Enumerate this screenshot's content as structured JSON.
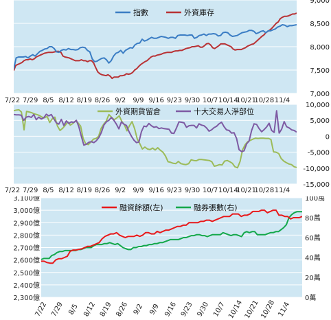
{
  "colors": {
    "panel_bg": "#cfe7f3",
    "grid": "#ffffff",
    "axis_text": "#222222",
    "index": "#3b7dc4",
    "foreign_inventory": "#b83235",
    "foreign_futures": "#9cbb59",
    "top10_net": "#7e5aa3",
    "margin_balance": "#e8191b",
    "short_balance": "#14a84b"
  },
  "chart_data": [
    {
      "type": "line",
      "series": [
        {
          "name": "指數",
          "axis": "left",
          "values": [
            7520,
            7760,
            7780,
            7780,
            7780,
            7790,
            7760,
            7800,
            7830,
            7800,
            7850,
            7900,
            7920,
            7950,
            7960,
            8000,
            8000,
            7960,
            7890,
            7880,
            7920,
            7940,
            7930,
            7960,
            7940,
            7940,
            7930,
            7940,
            7980,
            7990,
            7980,
            7920,
            7890,
            7740,
            7680,
            7690,
            7720,
            7750,
            7760,
            7720,
            7650,
            7700,
            7800,
            7860,
            7880,
            7920,
            7860,
            7920,
            7950,
            7980,
            7970,
            8040,
            8070,
            8080,
            8160,
            8120,
            8140,
            8170,
            8200,
            8180,
            8180,
            8200,
            8220,
            8210,
            8200,
            8180,
            8200,
            8200,
            8180,
            8240,
            8250,
            8250,
            8250,
            8240,
            8250,
            8250,
            8180,
            8200,
            8240,
            8250,
            8270,
            8240,
            8270,
            8270,
            8280,
            8270,
            8230,
            8240,
            8300,
            8310,
            8300,
            8250,
            8220,
            8230,
            8240,
            8270,
            8300,
            8310,
            8320,
            8350,
            8350,
            8330,
            8280,
            8300,
            8330,
            8340,
            8300,
            8340,
            8340,
            8360,
            8380,
            8420,
            8440,
            8470,
            8460,
            8430,
            8450,
            8450,
            8460,
            8470
          ]
        },
        {
          "name": "外資庫存",
          "axis": "right",
          "values": [
            7490,
            7600,
            7620,
            7640,
            7660,
            7700,
            7720,
            7720,
            7740,
            7720,
            7740,
            7780,
            7800,
            7820,
            7840,
            7860,
            7870,
            7880,
            7880,
            7880,
            7890,
            7900,
            7900,
            7880,
            7800,
            7780,
            7770,
            7760,
            7740,
            7720,
            7700,
            7700,
            7700,
            7720,
            7700,
            7700,
            7680,
            7700,
            7700,
            7650,
            7550,
            7460,
            7420,
            7400,
            7390,
            7380,
            7400,
            7370,
            7320,
            7350,
            7350,
            7350,
            7380,
            7380,
            7390,
            7420,
            7410,
            7420,
            7450,
            7500,
            7530,
            7580,
            7620,
            7650,
            7680,
            7700,
            7740,
            7780,
            7800,
            7800,
            7820,
            7830,
            7840,
            7860,
            7870,
            7880,
            7880,
            7880,
            7900,
            7910,
            7910,
            7920,
            7920,
            7940,
            7960,
            7970,
            7980,
            8000,
            8000,
            8010,
            8020,
            7990,
            7990,
            8020,
            8060,
            8070,
            8040,
            7980,
            7960,
            7990,
            8020,
            8060,
            8060,
            8060,
            8040,
            8020,
            8000,
            7950,
            7930,
            7940,
            7940,
            7940,
            7960,
            7980,
            8010,
            8030,
            8050,
            8060,
            8100,
            8140,
            8180,
            8220,
            8250,
            8300,
            8330,
            8360,
            8400,
            8450,
            8500,
            8530,
            8600,
            8630,
            8650,
            8650,
            8660,
            8680,
            8700,
            8700,
            8720
          ]
        }
      ],
      "ylim_left": [
        7000,
        9000
      ],
      "yticks": [
        "7,000",
        "7,500",
        "8,000",
        "8,500",
        "9,000"
      ],
      "xticks": [
        "7/22",
        "7/29",
        "8/5",
        "8/12",
        "8/19",
        "8/26",
        "9/2",
        "9/9",
        "9/16",
        "9/23",
        "9/30",
        "10/7",
        "10/14",
        "10/21",
        "10/28",
        "11/4"
      ],
      "legend": "top",
      "grid": true
    },
    {
      "type": "line",
      "series": [
        {
          "name": "外資期貨留倉",
          "values": [
            8000,
            8200,
            8300,
            7600,
            2000,
            7800,
            7600,
            7400,
            7000,
            6800,
            6500,
            6000,
            5800,
            6200,
            4300,
            5500,
            6000,
            3200,
            1800,
            2500,
            3400,
            4500,
            3500,
            4000,
            4800,
            4200,
            3200,
            -700,
            -2400,
            -2600,
            -1800,
            -900,
            -700,
            0,
            2500,
            3800,
            4800,
            6800,
            6000,
            5200,
            5700,
            6400,
            4700,
            3600,
            1700,
            3300,
            4600,
            2400,
            -800,
            -2300,
            -4000,
            -3400,
            -4000,
            -4200,
            -3700,
            -4300,
            -3600,
            -4400,
            -5000,
            -6200,
            -8000,
            -8200,
            -8500,
            -8600,
            -7900,
            -8600,
            -8800,
            -8900,
            -8600,
            -7400,
            -7600,
            -7700,
            -7300,
            -7300,
            -7400,
            -7500,
            -7600,
            -8000,
            -9400,
            -9200,
            -8900,
            -9000,
            -7800,
            -7600,
            -8000,
            -8500,
            -9600,
            -9900,
            -7900,
            -4200,
            -2600,
            -1700,
            -1300,
            -900,
            -600,
            -700,
            -600,
            -600,
            -700,
            -700,
            -1000,
            -4900,
            -5000,
            -5400,
            -7000,
            -7800,
            -8300,
            -8700,
            -8900,
            -9600,
            -9800
          ]
        },
        {
          "name": "十大交易人淨部位",
          "values": [
            6800,
            6700,
            6700,
            6600,
            5000,
            6000,
            6200,
            5900,
            6800,
            5200,
            6000,
            5400,
            5800,
            6900,
            6400,
            6800,
            5500,
            4200,
            3800,
            5300,
            3400,
            4800,
            4000,
            4500,
            4300,
            5000,
            3000,
            0,
            -2800,
            -2500,
            -1900,
            -1700,
            -2000,
            -1400,
            -400,
            1200,
            3500,
            4500,
            5000,
            5900,
            5000,
            3800,
            2300,
            4500,
            3800,
            3400,
            1500,
            0,
            -1200,
            -2000,
            -1800,
            1400,
            3200,
            3000,
            4000,
            3300,
            2800,
            3000,
            2400,
            2600,
            2400,
            2300,
            2200,
            1000,
            900,
            2600,
            4500,
            4400,
            4200,
            2800,
            3300,
            3400,
            3400,
            2600,
            3900,
            3500,
            3300,
            2600,
            1600,
            2000,
            2700,
            3100,
            3900,
            4400,
            3000,
            2000,
            1800,
            1000,
            1100,
            -700,
            -4200,
            -4800,
            -4600,
            -2400,
            -1500,
            1800,
            3900,
            3700,
            2400,
            1400,
            2100,
            2900,
            4100,
            1800,
            1200,
            8000,
            1000,
            2200,
            4600,
            3000,
            2600,
            2000,
            1800,
            1300
          ]
        }
      ],
      "ylim": [
        -15000,
        10000
      ],
      "yticks": [
        "-15,000",
        "-10,000",
        "-5,000",
        "0",
        "5,000",
        "10,000"
      ],
      "xticks": [
        "7/22",
        "7/29",
        "8/5",
        "8/12",
        "8/19",
        "8/26",
        "9/2",
        "9/9",
        "9/16",
        "9/23",
        "9/30",
        "10/7",
        "10/14",
        "10/21",
        "10/28",
        "11/4"
      ],
      "legend": "top",
      "grid": true
    },
    {
      "type": "line",
      "series": [
        {
          "name": "融資餘額(左)",
          "axis": "left",
          "values": [
            2590,
            2590,
            2580,
            2575,
            2575,
            2600,
            2610,
            2610,
            2620,
            2630,
            2670,
            2680,
            2680,
            2685,
            2690,
            2700,
            2710,
            2710,
            2720,
            2730,
            2740,
            2770,
            2790,
            2800,
            2810,
            2810,
            2820,
            2800,
            2790,
            2780,
            2790,
            2790,
            2790,
            2800,
            2790,
            2800,
            2820,
            2820,
            2810,
            2810,
            2830,
            2820,
            2830,
            2840,
            2840,
            2850,
            2860,
            2870,
            2870,
            2880,
            2880,
            2900,
            2900,
            2900,
            2900,
            2910,
            2910,
            2920,
            2920,
            2910,
            2920,
            2930,
            2940,
            2950,
            2950,
            2950,
            2970,
            2970,
            2970,
            2950,
            2960,
            2960,
            2970,
            2990,
            2990,
            2990,
            3000,
            3000,
            2980,
            2990,
            3000,
            3000,
            2960,
            2960,
            2950,
            2950,
            2930,
            2940,
            2940,
            2940,
            2950
          ]
        },
        {
          "name": "融券張數(右)",
          "axis": "right",
          "values": [
            38,
            39,
            39,
            39,
            42,
            43,
            45,
            46,
            46,
            47,
            47,
            47,
            47,
            47,
            48,
            48,
            49,
            50,
            50,
            50,
            52,
            53,
            53,
            53,
            54,
            54,
            55,
            54,
            53,
            54,
            52,
            50,
            49,
            48,
            48,
            50,
            50,
            51,
            51,
            52,
            52,
            53,
            53,
            54,
            54,
            55,
            55,
            56,
            57,
            58,
            58,
            58,
            58,
            59,
            60,
            60,
            61,
            62,
            62,
            63,
            63,
            62,
            62,
            61,
            62,
            63,
            63,
            63,
            63,
            65,
            64,
            63,
            62,
            63,
            63,
            62,
            61,
            65,
            66,
            65,
            66,
            66,
            63,
            63,
            63,
            63,
            64,
            65,
            65,
            66,
            66,
            68,
            70,
            73,
            80,
            83,
            85,
            86,
            86,
            86
          ]
        }
      ],
      "ylim_left": [
        2300,
        3100
      ],
      "ylim_right": [
        0,
        100
      ],
      "yticks_left": [
        "2,300億",
        "2,400億",
        "2,500億",
        "2,600億",
        "2,700億",
        "2,800億",
        "2,900億",
        "3,000億",
        "3,100億"
      ],
      "yticks_right": [
        "0萬",
        "20萬",
        "40萬",
        "60萬",
        "80萬",
        "100萬"
      ],
      "xticks": [
        "7/22",
        "7/29",
        "8/5",
        "8/12",
        "8/19",
        "8/26",
        "9/2",
        "9/9",
        "9/16",
        "9/23",
        "9/30",
        "10/7",
        "10/14",
        "10/21",
        "10/28",
        "11/4"
      ],
      "legend": "top",
      "grid": true
    }
  ]
}
